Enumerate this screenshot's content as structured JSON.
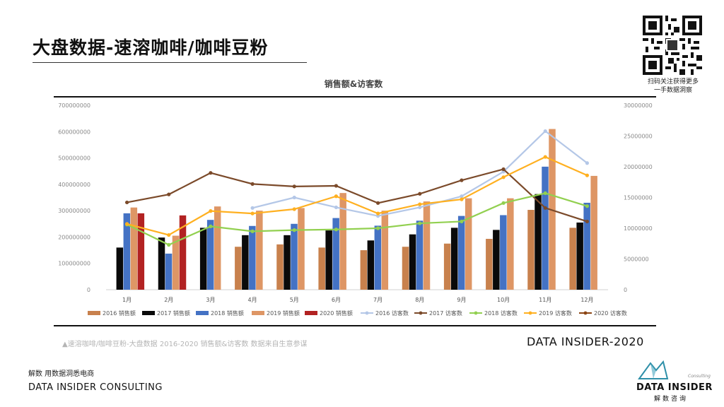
{
  "header": {
    "title": "大盘数据-速溶咖啡/咖啡豆粉",
    "qr_caption_line1": "扫码关注获得更多",
    "qr_caption_line2": "一手数据洞察"
  },
  "chart_data": {
    "type": "bar",
    "title": "销售额&访客数",
    "categories": [
      "1月",
      "2月",
      "3月",
      "4月",
      "5月",
      "6月",
      "7月",
      "8月",
      "9月",
      "10月",
      "11月",
      "12月"
    ],
    "left_axis": {
      "min": 0,
      "max": 700000000,
      "step": 100000000,
      "ticks": [
        "0",
        "100000000",
        "200000000",
        "300000000",
        "400000000",
        "500000000",
        "600000000",
        "700000000"
      ]
    },
    "right_axis": {
      "min": 0,
      "max": 30000000,
      "step": 5000000,
      "ticks": [
        "0",
        "5000000",
        "10000000",
        "15000000",
        "20000000",
        "25000000",
        "30000000"
      ]
    },
    "bar_series": [
      {
        "name": "2016 销售额",
        "color": "#c8814d",
        "values": [
          null,
          null,
          null,
          163000000,
          172000000,
          160000000,
          150000000,
          163000000,
          175000000,
          193000000,
          303000000,
          235000000
        ]
      },
      {
        "name": "2017 销售额",
        "color": "#0a0a0a",
        "values": [
          160000000,
          198000000,
          235000000,
          207000000,
          207000000,
          225000000,
          187000000,
          210000000,
          235000000,
          227000000,
          363000000,
          255000000
        ]
      },
      {
        "name": "2018 销售额",
        "color": "#4472c4",
        "values": [
          290000000,
          137000000,
          265000000,
          242000000,
          250000000,
          272000000,
          243000000,
          262000000,
          280000000,
          283000000,
          467000000,
          330000000
        ]
      },
      {
        "name": "2019 销售额",
        "color": "#de9665",
        "values": [
          312000000,
          205000000,
          316000000,
          300000000,
          310000000,
          367000000,
          300000000,
          335000000,
          347000000,
          347000000,
          610000000,
          432000000
        ]
      },
      {
        "name": "2020 销售额",
        "color": "#b22222",
        "values": [
          290000000,
          282000000,
          null,
          null,
          null,
          null,
          null,
          null,
          null,
          null,
          null,
          null
        ]
      }
    ],
    "line_series": [
      {
        "name": "2016 访客数",
        "color": "#b4c7e7",
        "values": [
          null,
          null,
          null,
          13300000,
          15000000,
          13400000,
          12000000,
          13400000,
          15200000,
          19200000,
          25800000,
          20600000
        ]
      },
      {
        "name": "2017 访客数",
        "color": "#7b4a2a",
        "values": [
          14200000,
          15500000,
          19000000,
          17200000,
          16800000,
          16900000,
          14100000,
          15600000,
          17800000,
          19600000,
          13300000,
          11100000
        ]
      },
      {
        "name": "2018 访客数",
        "color": "#92d050",
        "values": [
          10600000,
          7300000,
          10300000,
          9500000,
          9700000,
          9800000,
          10000000,
          10800000,
          11100000,
          14100000,
          15700000,
          13600000
        ]
      },
      {
        "name": "2019 访客数",
        "color": "#ffb020",
        "values": [
          10700000,
          8900000,
          12800000,
          12400000,
          13100000,
          15200000,
          12400000,
          13900000,
          14700000,
          18300000,
          21600000,
          18600000
        ]
      },
      {
        "name": "2020 访客数",
        "color": "#8b4513",
        "values": [
          null,
          null,
          null,
          null,
          null,
          null,
          null,
          null,
          null,
          null,
          null,
          null
        ]
      }
    ],
    "legend_position": "bottom",
    "grid": false
  },
  "footer": {
    "caption": "▲速溶咖啡/咖啡豆粉-大盘数据 2016-2020 销售额&访客数 数据来自生意参谋",
    "brand_year": "DATA INSIDER-2020",
    "tagline_cn": "解数 用数据洞悉电商",
    "company_en": "DATA INSIDER CONSULTING",
    "logo_name": "DATA INSIDER",
    "logo_cn": "解数咨询",
    "logo_consulting": "Consulting"
  }
}
